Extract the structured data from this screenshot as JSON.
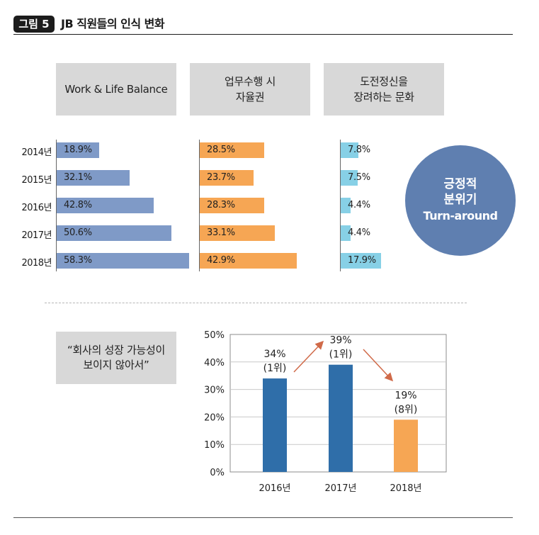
{
  "header": {
    "badge": "그림 5",
    "title": "JB 직원들의 인식 변화"
  },
  "categories": [
    {
      "label": "Work & Life Balance"
    },
    {
      "label": "업무수행 시\n자율권"
    },
    {
      "label": "도전정신을\n장려하는 문화"
    }
  ],
  "circle": {
    "line1": "긍정적",
    "line2": "분위기",
    "line3": "Turn-around"
  },
  "quote": "“회사의 성장 가능성이\n보이지 않아서”",
  "colors": {
    "blue": "#7f9ac7",
    "orange": "#f6a654",
    "cyan": "#87d0e6",
    "dark_blue": "#2f6ea9",
    "circle": "#5f7fb0",
    "arrow": "#d06a49"
  },
  "chart_data": [
    {
      "type": "bar",
      "orientation": "horizontal",
      "categories": [
        "2014년",
        "2015년",
        "2016년",
        "2017년",
        "2018년"
      ],
      "series": [
        {
          "name": "Work & Life Balance",
          "values": [
            18.9,
            32.1,
            42.8,
            50.6,
            58.3
          ],
          "labels": [
            "18.9%",
            "32.1%",
            "42.8%",
            "50.6%",
            "58.3%"
          ],
          "color": "#7f9ac7"
        },
        {
          "name": "업무수행 시 자율권",
          "values": [
            28.5,
            23.7,
            28.3,
            33.1,
            42.9
          ],
          "labels": [
            "28.5%",
            "23.7%",
            "28.3%",
            "33.1%",
            "42.9%"
          ],
          "color": "#f6a654"
        },
        {
          "name": "도전정신을 장려하는 문화",
          "values": [
            7.8,
            7.5,
            4.4,
            4.4,
            17.9
          ],
          "labels": [
            "7.8%",
            "7.5%",
            "4.4%",
            "4.4%",
            "17.9%"
          ],
          "color": "#87d0e6"
        }
      ]
    },
    {
      "type": "bar",
      "categories": [
        "2016년",
        "2017년",
        "2018년"
      ],
      "values": [
        34,
        39,
        19
      ],
      "labels": [
        "34%",
        "39%",
        "19%"
      ],
      "ranks": [
        "(1위)",
        "(1위)",
        "(8위)"
      ],
      "colors": [
        "#2f6ea9",
        "#2f6ea9",
        "#f6a654"
      ],
      "ylim": [
        0,
        50
      ],
      "yticks": [
        "0%",
        "10%",
        "20%",
        "30%",
        "40%",
        "50%"
      ],
      "ytick_values": [
        0,
        10,
        20,
        30,
        40,
        50
      ],
      "grid": true
    }
  ]
}
